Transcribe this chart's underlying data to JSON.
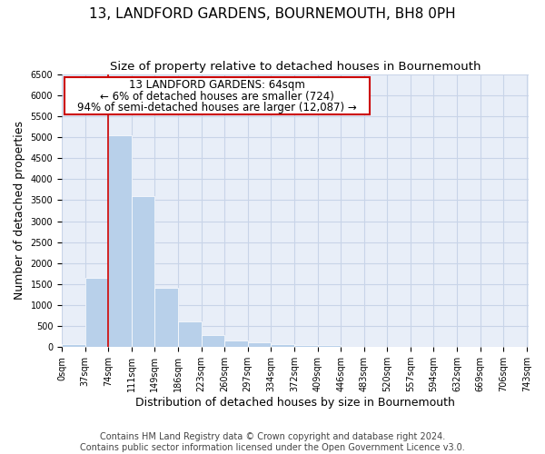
{
  "title": "13, LANDFORD GARDENS, BOURNEMOUTH, BH8 0PH",
  "subtitle": "Size of property relative to detached houses in Bournemouth",
  "xlabel": "Distribution of detached houses by size in Bournemouth",
  "ylabel": "Number of detached properties",
  "footer_line1": "Contains HM Land Registry data © Crown copyright and database right 2024.",
  "footer_line2": "Contains public sector information licensed under the Open Government Licence v3.0.",
  "bin_width": 37,
  "num_bins": 20,
  "bar_values": [
    80,
    1650,
    5050,
    3600,
    1400,
    620,
    290,
    150,
    110,
    75,
    50,
    50,
    0,
    0,
    0,
    0,
    0,
    0,
    0,
    0
  ],
  "bar_color": "#b8d0ea",
  "grid_color": "#c8d4e8",
  "redline_x": 74,
  "annotation_text_line1": "13 LANDFORD GARDENS: 64sqm",
  "annotation_text_line2": "← 6% of detached houses are smaller (724)",
  "annotation_text_line3": "94% of semi-detached houses are larger (12,087) →",
  "annotation_box_color": "#ffffff",
  "annotation_border_color": "#cc0000",
  "ylim": [
    0,
    6500
  ],
  "xlim": [
    0,
    743
  ],
  "yticks": [
    0,
    500,
    1000,
    1500,
    2000,
    2500,
    3000,
    3500,
    4000,
    4500,
    5000,
    5500,
    6000,
    6500
  ],
  "xtick_labels": [
    "0sqm",
    "37sqm",
    "74sqm",
    "111sqm",
    "149sqm",
    "186sqm",
    "223sqm",
    "260sqm",
    "297sqm",
    "334sqm",
    "372sqm",
    "409sqm",
    "446sqm",
    "483sqm",
    "520sqm",
    "557sqm",
    "594sqm",
    "632sqm",
    "669sqm",
    "706sqm",
    "743sqm"
  ],
  "title_fontsize": 11,
  "subtitle_fontsize": 9.5,
  "tick_fontsize": 7,
  "label_fontsize": 9,
  "footer_fontsize": 7,
  "annotation_fontsize": 8.5
}
